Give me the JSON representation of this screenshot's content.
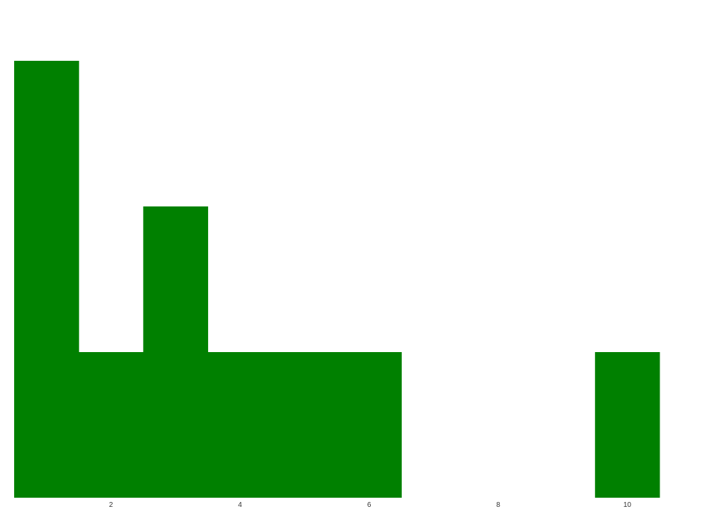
{
  "chart_data": {
    "type": "bar",
    "title": "",
    "xlabel": "",
    "ylabel": "",
    "categories": [
      1,
      2,
      3,
      4,
      5,
      6,
      7,
      8,
      9,
      10
    ],
    "values": [
      3,
      1,
      2,
      1,
      1,
      1,
      0,
      0,
      0,
      1
    ],
    "xlim": [
      0.5,
      10.5
    ],
    "ylim": [
      0,
      3
    ],
    "x_ticks": [
      2,
      4,
      6,
      8,
      10
    ],
    "y_ticks": [],
    "grid": false,
    "legend": "none",
    "bar_color": "#008000",
    "tick_label_color": "#333333",
    "background_color": "#ffffff"
  }
}
